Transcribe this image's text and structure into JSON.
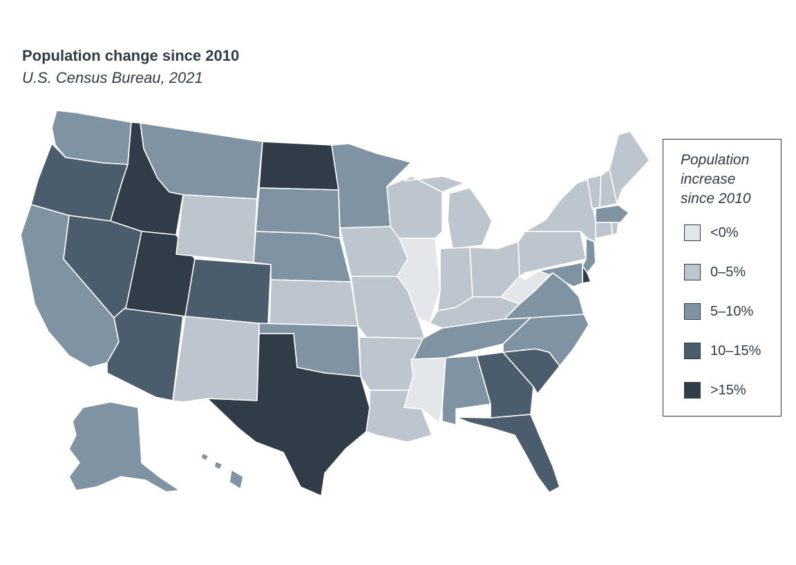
{
  "title": "Population change since 2010",
  "subtitle": "U.S. Census Bureau, 2021",
  "legend": {
    "title_lines": [
      "Population",
      "increase",
      "since 2010"
    ],
    "items": [
      {
        "label": "<0%",
        "color": "#e4e7ea"
      },
      {
        "label": "0–5%",
        "color": "#bdc6ce"
      },
      {
        "label": "5–10%",
        "color": "#7f93a3"
      },
      {
        "label": "10–15%",
        "color": "#4b5d6c"
      },
      {
        "label": ">15%",
        "color": "#303d48"
      }
    ]
  },
  "map_data": {
    "classes": [
      "<0%",
      "0–5%",
      "5–10%",
      "10–15%",
      ">15%"
    ],
    "states": [
      {
        "code": "WA",
        "class": 2
      },
      {
        "code": "OR",
        "class": 3
      },
      {
        "code": "CA",
        "class": 2
      },
      {
        "code": "ID",
        "class": 4
      },
      {
        "code": "NV",
        "class": 3
      },
      {
        "code": "AZ",
        "class": 3
      },
      {
        "code": "UT",
        "class": 4
      },
      {
        "code": "MT",
        "class": 2
      },
      {
        "code": "WY",
        "class": 1
      },
      {
        "code": "CO",
        "class": 3
      },
      {
        "code": "NM",
        "class": 1
      },
      {
        "code": "ND",
        "class": 4
      },
      {
        "code": "SD",
        "class": 2
      },
      {
        "code": "NE",
        "class": 2
      },
      {
        "code": "KS",
        "class": 1
      },
      {
        "code": "OK",
        "class": 2
      },
      {
        "code": "TX",
        "class": 4
      },
      {
        "code": "MN",
        "class": 2
      },
      {
        "code": "IA",
        "class": 1
      },
      {
        "code": "MO",
        "class": 1
      },
      {
        "code": "AR",
        "class": 1
      },
      {
        "code": "LA",
        "class": 1
      },
      {
        "code": "WI",
        "class": 1
      },
      {
        "code": "IL",
        "class": 0
      },
      {
        "code": "MS",
        "class": 0
      },
      {
        "code": "MI",
        "class": 1
      },
      {
        "code": "IN",
        "class": 1
      },
      {
        "code": "OH",
        "class": 1
      },
      {
        "code": "KY",
        "class": 1
      },
      {
        "code": "TN",
        "class": 2
      },
      {
        "code": "AL",
        "class": 2
      },
      {
        "code": "GA",
        "class": 3
      },
      {
        "code": "FL",
        "class": 3
      },
      {
        "code": "SC",
        "class": 3
      },
      {
        "code": "NC",
        "class": 2
      },
      {
        "code": "VA",
        "class": 2
      },
      {
        "code": "WV",
        "class": 0
      },
      {
        "code": "PA",
        "class": 1
      },
      {
        "code": "NY",
        "class": 1
      },
      {
        "code": "VT",
        "class": 1
      },
      {
        "code": "NH",
        "class": 1
      },
      {
        "code": "ME",
        "class": 1
      },
      {
        "code": "MA",
        "class": 2
      },
      {
        "code": "CT",
        "class": 1
      },
      {
        "code": "RI",
        "class": 1
      },
      {
        "code": "NJ",
        "class": 2
      },
      {
        "code": "DE",
        "class": 4
      },
      {
        "code": "MD",
        "class": 2
      },
      {
        "code": "AK",
        "class": 2
      },
      {
        "code": "HI",
        "class": 2
      }
    ]
  }
}
